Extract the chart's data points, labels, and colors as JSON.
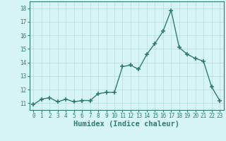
{
  "x": [
    0,
    1,
    2,
    3,
    4,
    5,
    6,
    7,
    8,
    9,
    10,
    11,
    12,
    13,
    14,
    15,
    16,
    17,
    18,
    19,
    20,
    21,
    22,
    23
  ],
  "y": [
    10.9,
    11.3,
    11.4,
    11.1,
    11.3,
    11.1,
    11.2,
    11.2,
    11.7,
    11.8,
    11.8,
    13.7,
    13.8,
    13.5,
    14.6,
    15.4,
    16.3,
    17.85,
    15.1,
    14.6,
    14.3,
    14.1,
    12.2,
    11.2
  ],
  "xlim": [
    -0.5,
    23.5
  ],
  "ylim": [
    10.5,
    18.5
  ],
  "yticks": [
    11,
    12,
    13,
    14,
    15,
    16,
    17,
    18
  ],
  "xticks": [
    0,
    1,
    2,
    3,
    4,
    5,
    6,
    7,
    8,
    9,
    10,
    11,
    12,
    13,
    14,
    15,
    16,
    17,
    18,
    19,
    20,
    21,
    22,
    23
  ],
  "xlabel": "Humidex (Indice chaleur)",
  "line_color": "#2d7d6e",
  "marker": "+",
  "marker_size": 4.0,
  "marker_lw": 1.2,
  "line_width": 1.0,
  "bg_color": "#d8f5f5",
  "grid_color": "#b8dada",
  "tick_label_fontsize": 5.5,
  "xlabel_fontsize": 7.5,
  "xlabel_fontfamily": "monospace"
}
